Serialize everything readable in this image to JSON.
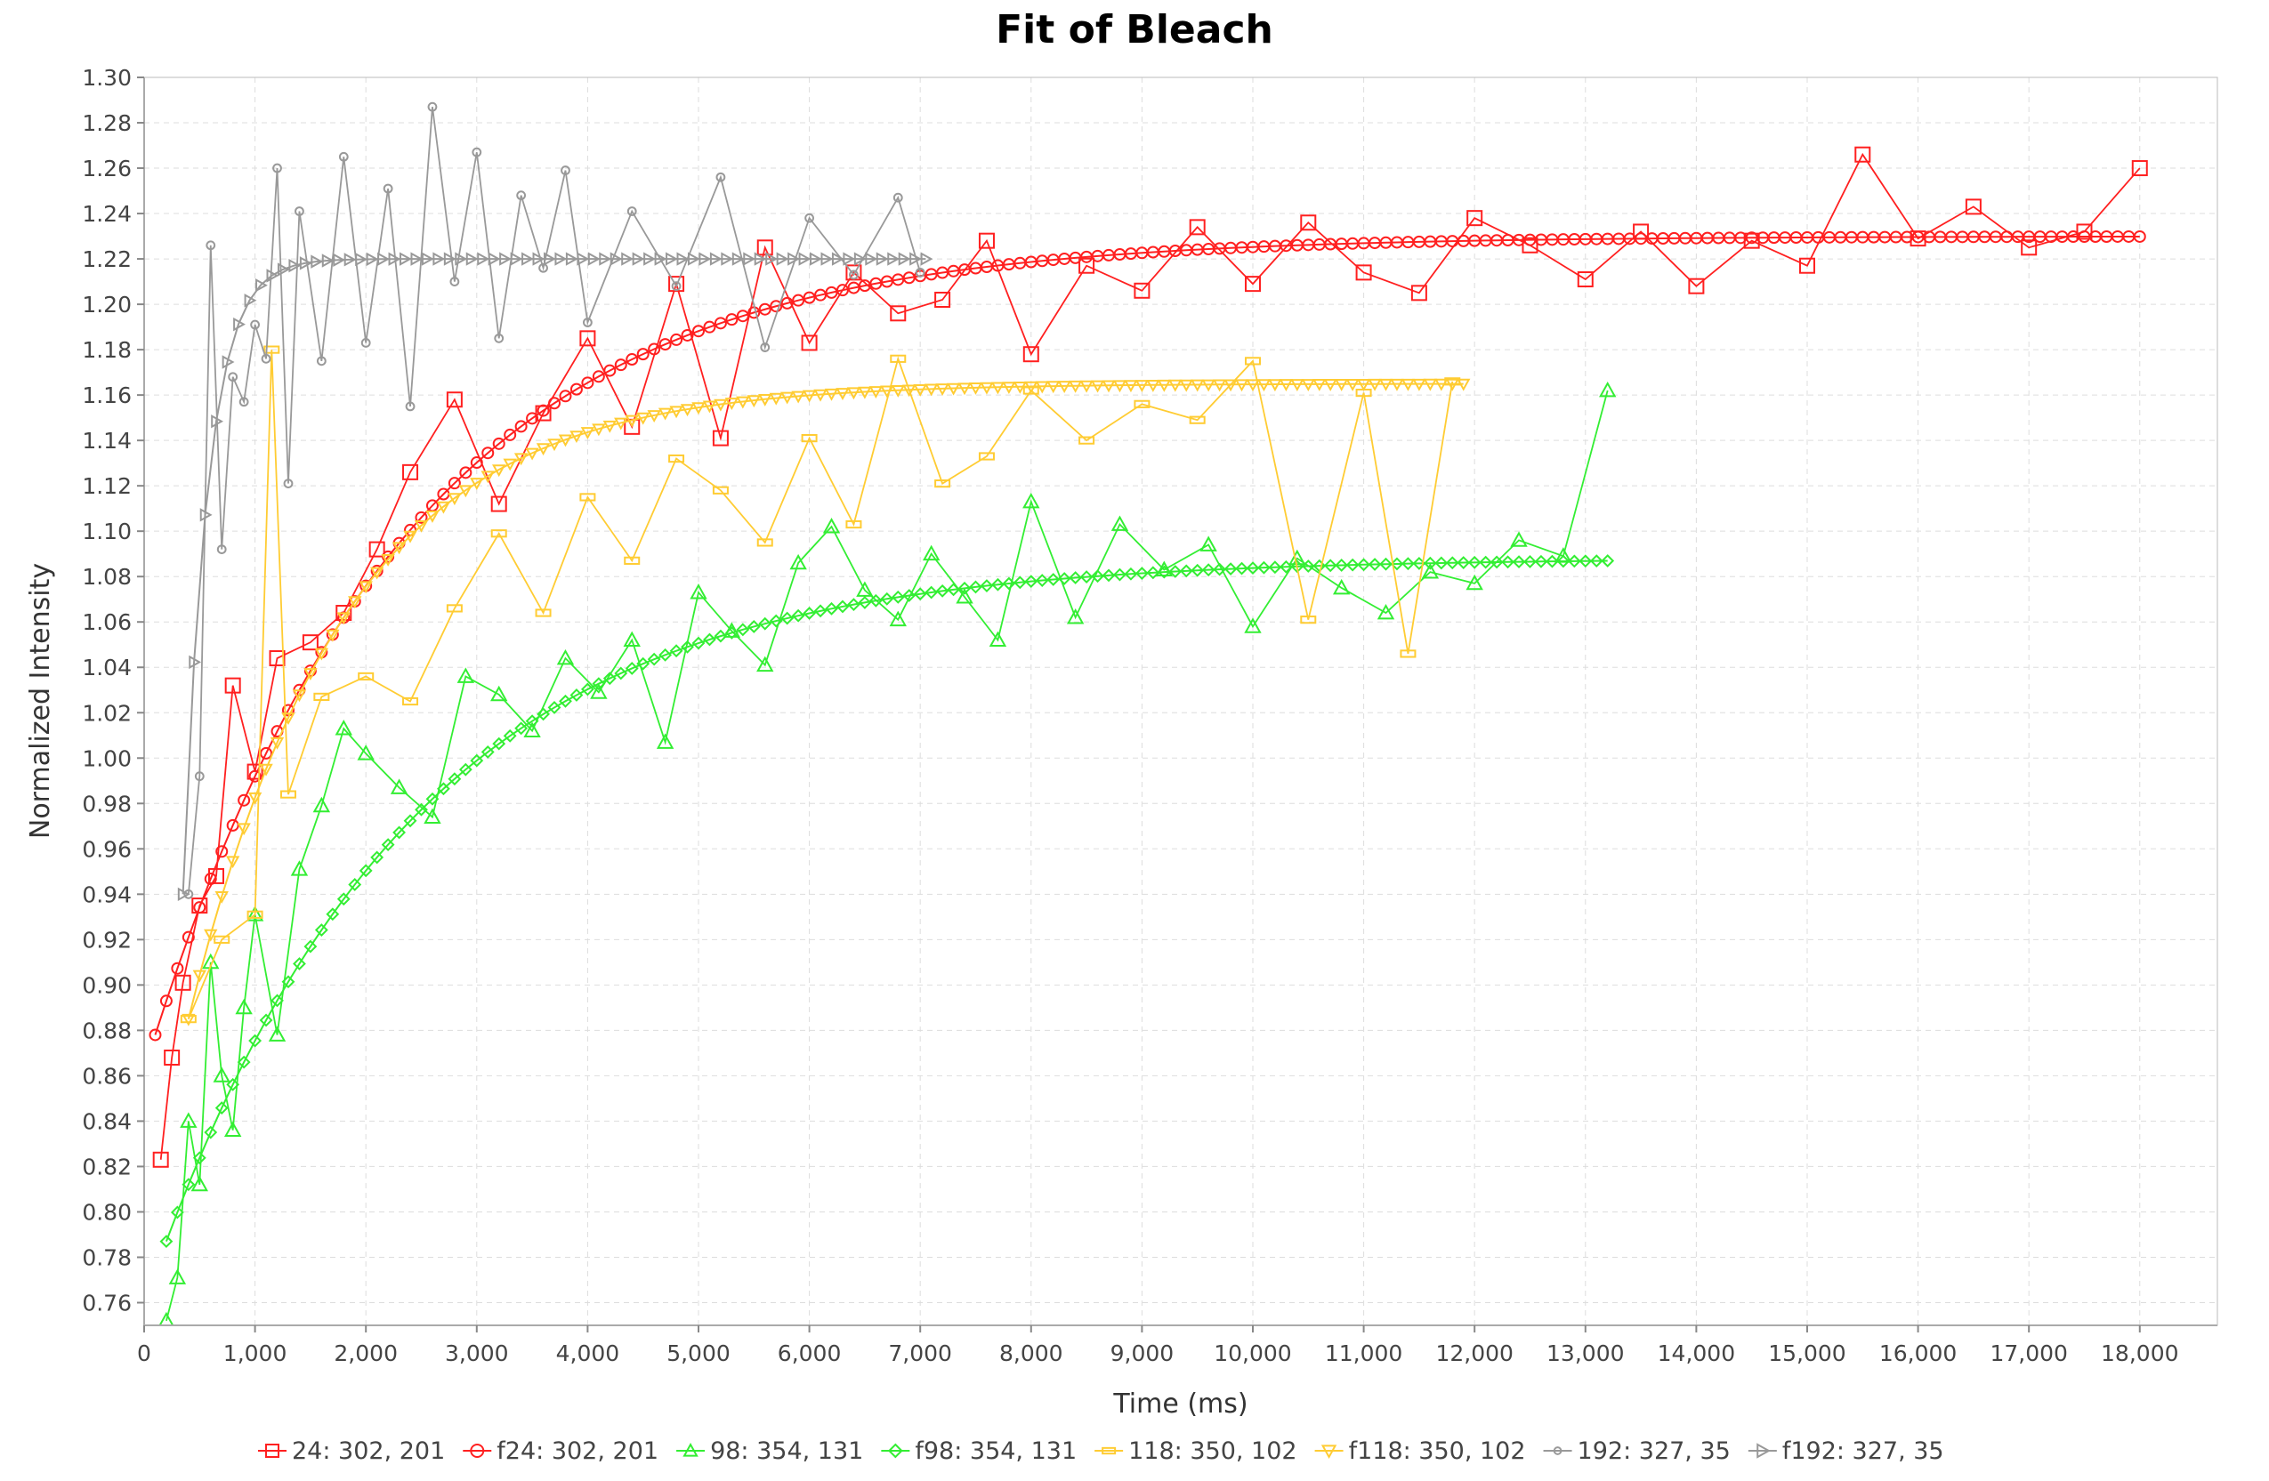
{
  "chart_data": {
    "type": "line",
    "title": "Fit of Bleach",
    "xlabel": "Time (ms)",
    "ylabel": "Normalized Intensity",
    "xlim": [
      0,
      18700
    ],
    "ylim": [
      0.75,
      1.3
    ],
    "x_ticks": [
      "0",
      "1,000",
      "2,000",
      "3,000",
      "4,000",
      "5,000",
      "6,000",
      "7,000",
      "8,000",
      "9,000",
      "10,000",
      "11,000",
      "12,000",
      "13,000",
      "14,000",
      "15,000",
      "16,000",
      "17,000",
      "18,000"
    ],
    "y_ticks": [
      "0.76",
      "0.78",
      "0.80",
      "0.82",
      "0.84",
      "0.86",
      "0.88",
      "0.90",
      "0.92",
      "0.94",
      "0.96",
      "0.98",
      "1.00",
      "1.02",
      "1.04",
      "1.06",
      "1.08",
      "1.10",
      "1.12",
      "1.14",
      "1.16",
      "1.18",
      "1.20",
      "1.22",
      "1.24",
      "1.26",
      "1.28",
      "1.30"
    ],
    "grid": true,
    "legend": "bottom",
    "series": [
      {
        "name": "24: 302, 201",
        "color": "#ff2020",
        "marker": "square",
        "x": [
          150,
          250,
          350,
          500,
          650,
          800,
          1000,
          1200,
          1500,
          1800,
          2100,
          2400,
          2800,
          3200,
          3600,
          4000,
          4400,
          4800,
          5200,
          5600,
          6000,
          6400,
          6800,
          7200,
          7600,
          8000,
          8500,
          9000,
          9500,
          10000,
          10500,
          11000,
          11500,
          12000,
          12500,
          13000,
          13500,
          14000,
          14500,
          15000,
          15500,
          16000,
          16500,
          17000,
          17500,
          18000
        ],
        "values": [
          0.823,
          0.868,
          0.901,
          0.935,
          0.948,
          1.032,
          0.994,
          1.044,
          1.051,
          1.064,
          1.092,
          1.126,
          1.158,
          1.112,
          1.152,
          1.185,
          1.146,
          1.209,
          1.141,
          1.225,
          1.183,
          1.214,
          1.196,
          1.202,
          1.228,
          1.178,
          1.217,
          1.206,
          1.234,
          1.209,
          1.236,
          1.214,
          1.205,
          1.238,
          1.226,
          1.211,
          1.232,
          1.208,
          1.228,
          1.217,
          1.266,
          1.229,
          1.243,
          1.225,
          1.232,
          1.26
        ]
      },
      {
        "name": "f24: 302, 201",
        "color": "#ff2020",
        "marker": "circle",
        "fit": {
          "a": 0.878,
          "b": 1.23,
          "t0": 100,
          "tau": 2300,
          "x_end": 18050,
          "step": 100
        }
      },
      {
        "name": "98: 354, 131",
        "color": "#33ee33",
        "marker": "triangle",
        "x": [
          200,
          300,
          400,
          500,
          600,
          700,
          800,
          900,
          1000,
          1200,
          1400,
          1600,
          1800,
          2000,
          2300,
          2600,
          2900,
          3200,
          3500,
          3800,
          4100,
          4400,
          4700,
          5000,
          5300,
          5600,
          5900,
          6200,
          6500,
          6800,
          7100,
          7400,
          7700,
          8000,
          8400,
          8800,
          9200,
          9600,
          10000,
          10400,
          10800,
          11200,
          11600,
          12000,
          12400,
          12800,
          13200
        ],
        "values": [
          0.752,
          0.771,
          0.84,
          0.812,
          0.91,
          0.86,
          0.836,
          0.89,
          0.931,
          0.878,
          0.951,
          0.979,
          1.013,
          1.002,
          0.987,
          0.974,
          1.036,
          1.028,
          1.012,
          1.044,
          1.029,
          1.052,
          1.007,
          1.073,
          1.056,
          1.041,
          1.086,
          1.102,
          1.074,
          1.061,
          1.09,
          1.071,
          1.052,
          1.113,
          1.062,
          1.103,
          1.083,
          1.094,
          1.058,
          1.088,
          1.075,
          1.064,
          1.082,
          1.077,
          1.096,
          1.089,
          1.162
        ]
      },
      {
        "name": "f98: 354, 131",
        "color": "#33ee33",
        "marker": "diamond",
        "fit": {
          "a": 0.787,
          "b": 1.088,
          "t0": 200,
          "tau": 2300,
          "x_end": 13200,
          "step": 100
        }
      },
      {
        "name": "118: 350, 102",
        "color": "#ffcc33",
        "marker": "dash",
        "x": [
          400,
          700,
          1000,
          1150,
          1300,
          1600,
          2000,
          2400,
          2800,
          3200,
          3600,
          4000,
          4400,
          4800,
          5200,
          5600,
          6000,
          6400,
          6800,
          7200,
          7600,
          8000,
          8500,
          9000,
          9500,
          10000,
          10500,
          11000,
          11400,
          11800
        ],
        "values": [
          0.885,
          0.92,
          0.931,
          1.18,
          0.984,
          1.027,
          1.036,
          1.025,
          1.066,
          1.099,
          1.064,
          1.115,
          1.087,
          1.132,
          1.118,
          1.095,
          1.141,
          1.103,
          1.176,
          1.121,
          1.133,
          1.162,
          1.14,
          1.156,
          1.149,
          1.175,
          1.061,
          1.161,
          1.046,
          1.166
        ]
      },
      {
        "name": "f118: 350, 102",
        "color": "#ffcc33",
        "marker": "triangle-down",
        "fit": {
          "a": 0.885,
          "b": 1.165,
          "t0": 400,
          "tau": 1400,
          "x_end": 11900,
          "step": 100
        }
      },
      {
        "name": "192: 327, 35",
        "color": "#999999",
        "marker": "dot",
        "x": [
          400,
          500,
          600,
          700,
          800,
          900,
          1000,
          1100,
          1200,
          1300,
          1400,
          1600,
          1800,
          2000,
          2200,
          2400,
          2600,
          2800,
          3000,
          3200,
          3400,
          3600,
          3800,
          4000,
          4400,
          4800,
          5200,
          5600,
          6000,
          6400,
          6800,
          7000
        ],
        "values": [
          0.94,
          0.992,
          1.226,
          1.092,
          1.168,
          1.157,
          1.191,
          1.176,
          1.26,
          1.121,
          1.241,
          1.175,
          1.265,
          1.183,
          1.251,
          1.155,
          1.287,
          1.21,
          1.267,
          1.185,
          1.248,
          1.216,
          1.259,
          1.192,
          1.241,
          1.208,
          1.256,
          1.181,
          1.238,
          1.213,
          1.247,
          1.214
        ]
      },
      {
        "name": "f192: 327, 35",
        "color": "#999999",
        "marker": "triangle-right",
        "fit": {
          "a": 0.94,
          "b": 1.22,
          "t0": 350,
          "tau": 220,
          "x_end": 7100,
          "step": 100
        }
      }
    ]
  }
}
